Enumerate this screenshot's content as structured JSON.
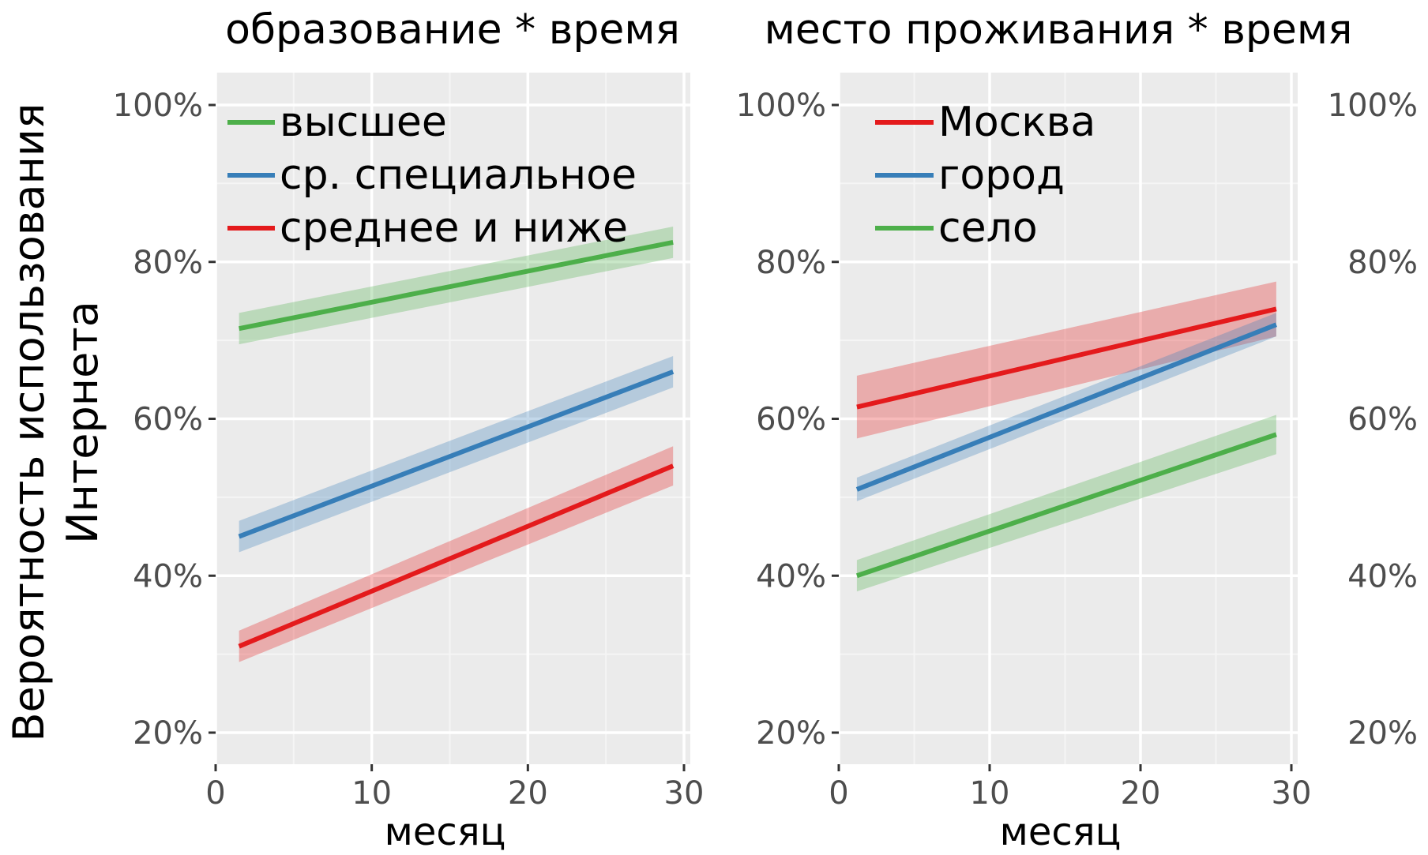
{
  "chart_data": [
    {
      "type": "line",
      "title": "образование * время",
      "xlabel": "месяц",
      "ylabel": "Вероятность использования Интернета",
      "xlim": [
        0,
        30
      ],
      "ylim": [
        18,
        102
      ],
      "x_ticks": [
        "0",
        "10",
        "20",
        "30"
      ],
      "y_ticks": [
        "20%",
        "40%",
        "60%",
        "80%",
        "100%"
      ],
      "grid": true,
      "legend_position": "top-left",
      "series": [
        {
          "name": "высшее",
          "color": "#4daf4a",
          "x": [
            1.5,
            29.3
          ],
          "y": [
            71.5,
            82.5
          ],
          "ci": [
            [
              69.5,
              73.5
            ],
            [
              80.5,
              84.5
            ]
          ]
        },
        {
          "name": "ср. специальное",
          "color": "#377eb8",
          "x": [
            1.5,
            29.3
          ],
          "y": [
            45,
            66
          ],
          "ci": [
            [
              43,
              47
            ],
            [
              64,
              68
            ]
          ]
        },
        {
          "name": "среднее и ниже",
          "color": "#e41a1c",
          "x": [
            1.5,
            29.3
          ],
          "y": [
            31,
            54
          ],
          "ci": [
            [
              29,
              33
            ],
            [
              51.5,
              56.5
            ]
          ]
        }
      ]
    },
    {
      "type": "line",
      "title": "место проживания * время",
      "xlabel": "месяц",
      "ylabel": "",
      "xlim": [
        0,
        30
      ],
      "ylim": [
        18,
        102
      ],
      "x_ticks": [
        "0",
        "10",
        "20",
        "30"
      ],
      "y_ticks": [
        "20%",
        "40%",
        "60%",
        "80%",
        "100%"
      ],
      "y_ticks_right": [
        "20%",
        "40%",
        "60%",
        "80%",
        "100%"
      ],
      "grid": true,
      "legend_position": "top-left",
      "series": [
        {
          "name": "Москва",
          "color": "#e41a1c",
          "x": [
            1.2,
            29
          ],
          "y": [
            61.5,
            74
          ],
          "ci": [
            [
              57.5,
              65.5
            ],
            [
              70.5,
              77.5
            ]
          ]
        },
        {
          "name": "город",
          "color": "#377eb8",
          "x": [
            1.2,
            29
          ],
          "y": [
            51,
            72
          ],
          "ci": [
            [
              49.5,
              52.5
            ],
            [
              70.5,
              73.5
            ]
          ]
        },
        {
          "name": "село",
          "color": "#4daf4a",
          "x": [
            1.2,
            29
          ],
          "y": [
            40,
            58
          ],
          "ci": [
            [
              38,
              42
            ],
            [
              55.5,
              60.5
            ]
          ]
        }
      ]
    }
  ]
}
